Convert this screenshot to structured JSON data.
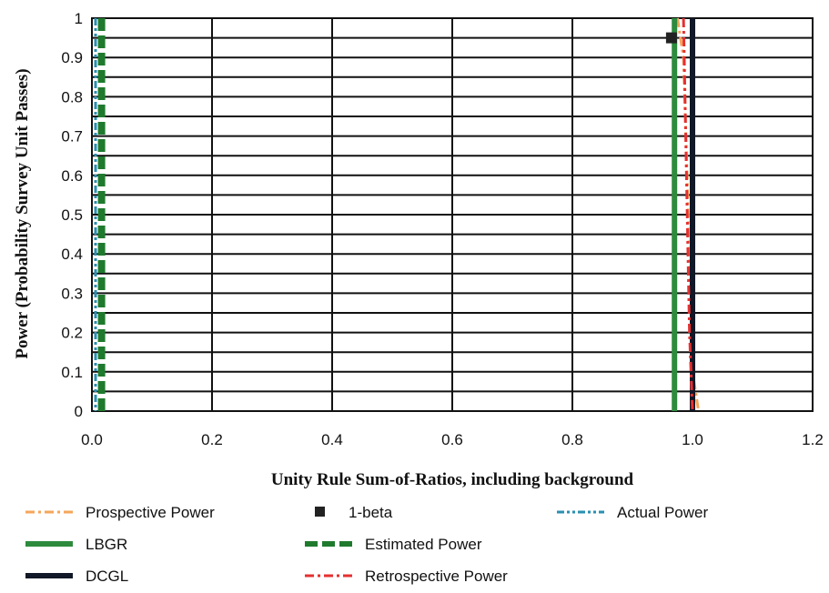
{
  "chart_data": {
    "type": "line",
    "title": "",
    "xlabel": "Unity Rule Sum-of-Ratios, including background",
    "ylabel": "Power (Probability Survey Unit Passes)",
    "xlim": [
      0,
      1.2
    ],
    "ylim": [
      0,
      1
    ],
    "x_ticks": [
      "0.0",
      "0.2",
      "0.4",
      "0.6",
      "0.8",
      "1.0",
      "1.2"
    ],
    "y_ticks": [
      "0",
      "0.1",
      "0.2",
      "0.3",
      "0.4",
      "0.5",
      "0.6",
      "0.7",
      "0.8",
      "0.9",
      "1"
    ],
    "y_gridlines": [
      0,
      0.05,
      0.1,
      0.15,
      0.2,
      0.25,
      0.3,
      0.35,
      0.4,
      0.45,
      0.5,
      0.55,
      0.6,
      0.65,
      0.7,
      0.75,
      0.8,
      0.85,
      0.9,
      0.95,
      1
    ],
    "grid": true,
    "legend_position": "bottom",
    "series": [
      {
        "name": "Prospective Power",
        "color": "#f5a65b",
        "style": "dash-dot",
        "points": [
          [
            0.975,
            1
          ],
          [
            0.985,
            0.9
          ],
          [
            0.993,
            0.5
          ],
          [
            1.0,
            0.1
          ],
          [
            1.01,
            0
          ]
        ]
      },
      {
        "name": "1-beta",
        "color": "#222222",
        "style": "marker-square",
        "points": [
          [
            0.965,
            0.95
          ]
        ]
      },
      {
        "name": "Actual Power",
        "color": "#2a8fb0",
        "style": "dash-dot-dot",
        "points": [
          [
            0.006,
            1
          ],
          [
            0.006,
            0
          ]
        ]
      },
      {
        "name": "LBGR",
        "color": "#2e8b3e",
        "style": "solid",
        "points": [
          [
            0.97,
            1
          ],
          [
            0.97,
            0
          ]
        ]
      },
      {
        "name": "Estimated Power",
        "color": "#1f7a2e",
        "style": "dash",
        "points": [
          [
            0.016,
            1
          ],
          [
            0.016,
            0
          ]
        ]
      },
      {
        "name": "DCGL",
        "color": "#111827",
        "style": "solid",
        "points": [
          [
            1.0,
            1
          ],
          [
            1.0,
            0
          ]
        ]
      },
      {
        "name": "Retrospective Power",
        "color": "#e53030",
        "style": "dash-dot",
        "points": [
          [
            0.985,
            1
          ],
          [
            0.99,
            0.6
          ],
          [
            0.995,
            0.2
          ],
          [
            1.0,
            0
          ]
        ]
      }
    ]
  }
}
